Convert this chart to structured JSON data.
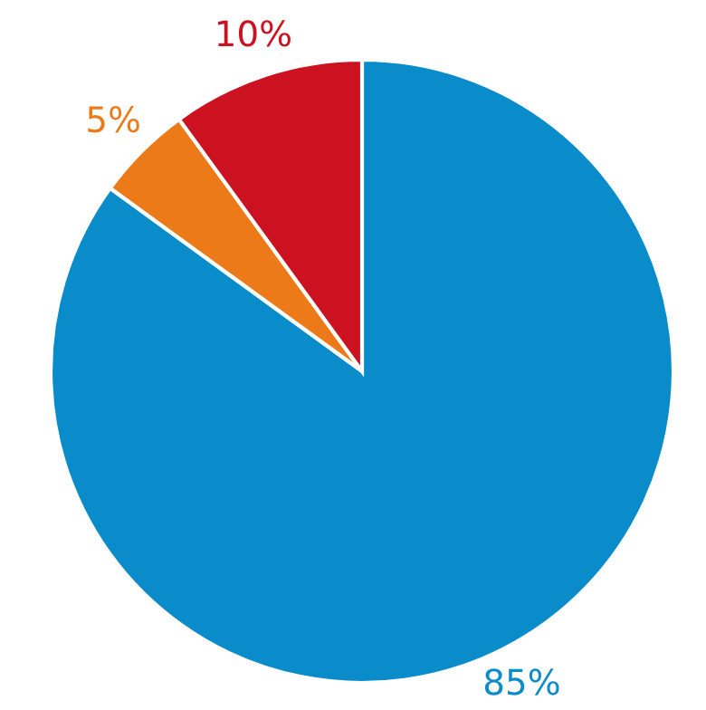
{
  "chart_data": {
    "type": "pie",
    "categories": [
      null,
      null,
      null
    ],
    "values": [
      85,
      5,
      10
    ],
    "colors": [
      "#0a8ccb",
      "#ed7a18",
      "#cc1120"
    ],
    "value_labels": [
      "85%",
      "5%",
      "10%"
    ]
  }
}
